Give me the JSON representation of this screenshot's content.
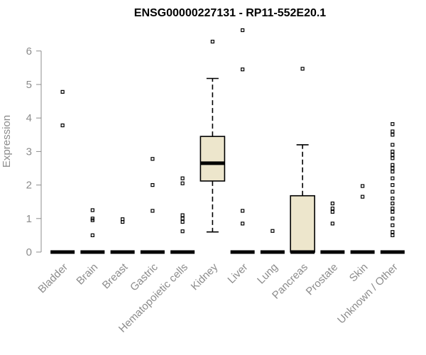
{
  "chart_data": {
    "type": "box",
    "title": "ENSG00000227131 - RP11-552E20.1",
    "xlabel": "",
    "ylabel": "Expression",
    "ylim": [
      0,
      6.6
    ],
    "yticks": [
      0,
      1,
      2,
      3,
      4,
      5,
      6
    ],
    "grid": false,
    "legend": "none",
    "colors": {
      "box_fill": "#ede6cc",
      "stroke": "#000000",
      "axis": "#8c8c8c"
    },
    "categories": [
      "Bladder",
      "Brain",
      "Breast",
      "Gastric",
      "Hematopoietic cells",
      "Kidney",
      "Liver",
      "Lung",
      "Pancreas",
      "Prostate",
      "Skin",
      "Unknown / Other"
    ],
    "boxes": [
      {
        "category": "Bladder",
        "min": 0,
        "q1": 0,
        "median": 0,
        "q3": 0,
        "max": 0,
        "outliers": [
          4.78,
          3.78
        ]
      },
      {
        "category": "Brain",
        "min": 0,
        "q1": 0,
        "median": 0,
        "q3": 0,
        "max": 0,
        "outliers": [
          1.25,
          1.0,
          0.95,
          0.5
        ]
      },
      {
        "category": "Breast",
        "min": 0,
        "q1": 0,
        "median": 0,
        "q3": 0,
        "max": 0,
        "outliers": [
          0.98,
          0.9
        ]
      },
      {
        "category": "Gastric",
        "min": 0,
        "q1": 0,
        "median": 0,
        "q3": 0,
        "max": 0,
        "outliers": [
          2.78,
          2.0,
          1.23
        ]
      },
      {
        "category": "Hematopoietic cells",
        "min": 0,
        "q1": 0,
        "median": 0,
        "q3": 0,
        "max": 0,
        "outliers": [
          2.2,
          2.05,
          1.1,
          1.0,
          0.9,
          0.62
        ]
      },
      {
        "category": "Kidney",
        "min": 0.6,
        "q1": 2.12,
        "median": 2.65,
        "q3": 3.45,
        "max": 5.18,
        "outliers": [
          6.28
        ]
      },
      {
        "category": "Liver",
        "min": 0,
        "q1": 0,
        "median": 0,
        "q3": 0,
        "max": 0,
        "outliers": [
          6.62,
          5.45,
          1.23,
          0.85
        ]
      },
      {
        "category": "Lung",
        "min": 0,
        "q1": 0,
        "median": 0,
        "q3": 0,
        "max": 0,
        "outliers": [
          0.63
        ]
      },
      {
        "category": "Pancreas",
        "min": 0,
        "q1": 0,
        "median": 0,
        "q3": 1.68,
        "max": 3.2,
        "outliers": [
          5.47
        ]
      },
      {
        "category": "Prostate",
        "min": 0,
        "q1": 0,
        "median": 0,
        "q3": 0,
        "max": 0,
        "outliers": [
          1.45,
          1.3,
          1.2,
          0.85
        ]
      },
      {
        "category": "Skin",
        "min": 0,
        "q1": 0,
        "median": 0,
        "q3": 0,
        "max": 0,
        "outliers": [
          1.97,
          1.65
        ]
      },
      {
        "category": "Unknown / Other",
        "min": 0,
        "q1": 0,
        "median": 0,
        "q3": 0,
        "max": 0,
        "outliers": [
          3.82,
          3.6,
          3.5,
          3.2,
          3.0,
          2.9,
          2.8,
          2.6,
          2.5,
          2.4,
          2.2,
          2.0,
          1.8,
          1.6,
          1.45,
          1.3,
          1.2,
          1.0,
          0.8,
          0.6,
          0.5
        ]
      }
    ]
  }
}
